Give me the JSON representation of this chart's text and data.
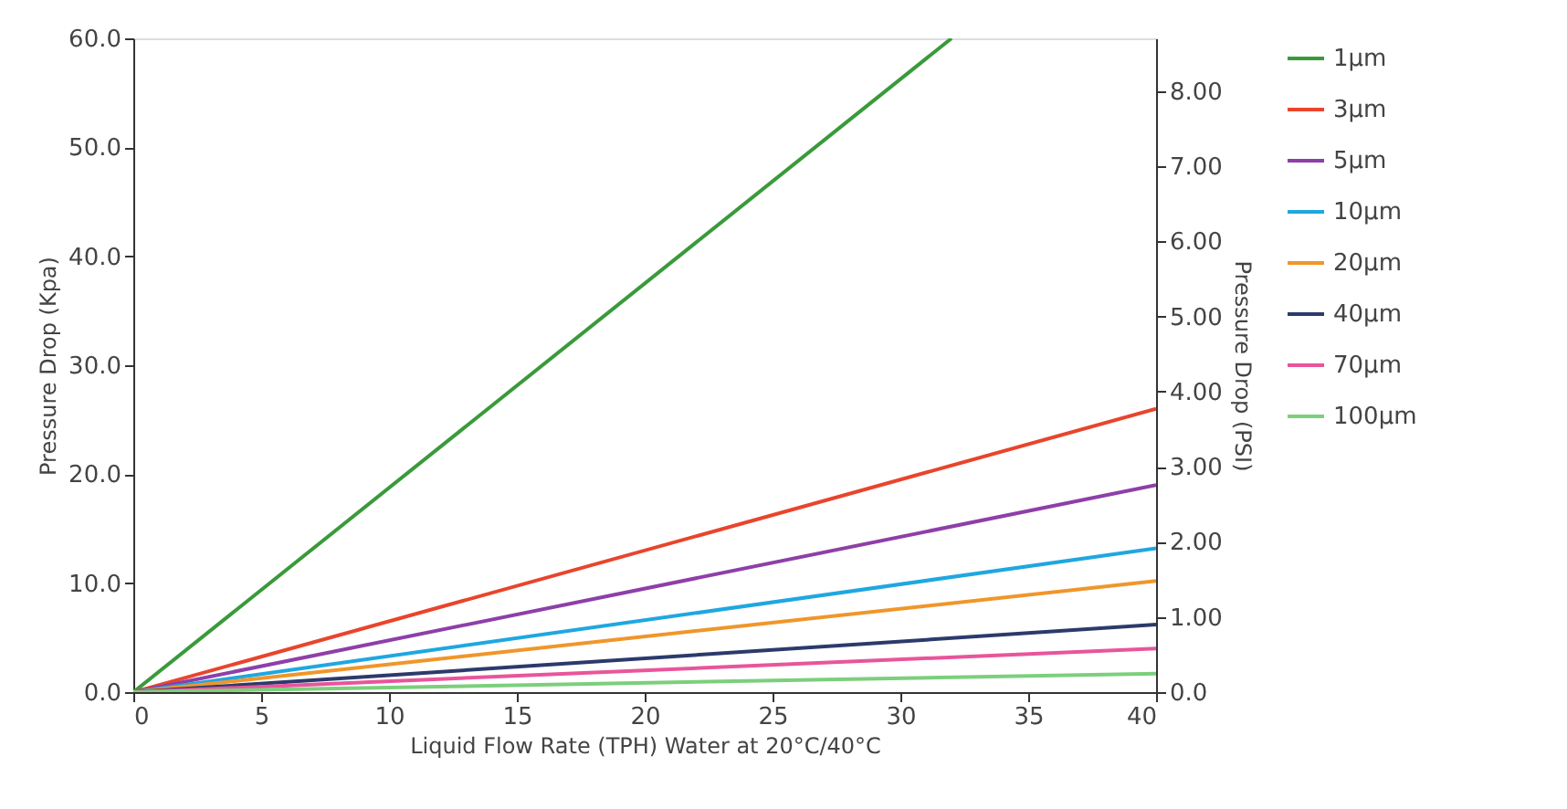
{
  "chart_data": {
    "type": "line",
    "xlabel": "Liquid Flow Rate (TPH) Water at 20°C/40°C",
    "ylabel": "Pressure Drop (Kpa)",
    "y2label": "Pressure Drop (PSI)",
    "xlim": [
      0,
      40
    ],
    "xticks": [
      0,
      5,
      10,
      15,
      20,
      25,
      30,
      35,
      40
    ],
    "ylim": [
      0,
      60
    ],
    "yticks": [
      {
        "value": 0,
        "label": "0.0"
      },
      {
        "value": 10,
        "label": "10.0"
      },
      {
        "value": 20,
        "label": "20.0"
      },
      {
        "value": 30,
        "label": "30.0"
      },
      {
        "value": 40,
        "label": "40.0"
      },
      {
        "value": 50,
        "label": "50.0"
      },
      {
        "value": 60,
        "label": "60.0"
      }
    ],
    "y2lim": [
      0,
      8.7
    ],
    "y2ticks": [
      {
        "value": 0,
        "label": "0.0"
      },
      {
        "value": 1,
        "label": "1.00"
      },
      {
        "value": 2,
        "label": "2.00"
      },
      {
        "value": 3,
        "label": "3.00"
      },
      {
        "value": 4,
        "label": "4.00"
      },
      {
        "value": 5,
        "label": "5.00"
      },
      {
        "value": 6,
        "label": "6.00"
      },
      {
        "value": 7,
        "label": "7.00"
      },
      {
        "value": 8,
        "label": "8.00"
      }
    ],
    "grid": false,
    "legend": "right",
    "marker": "none",
    "line_style": "solid",
    "series": [
      {
        "name": "1µm",
        "color": "#3a9a3a",
        "x": [
          0,
          32
        ],
        "values": [
          0,
          60
        ]
      },
      {
        "name": "3µm",
        "color": "#e8452c",
        "x": [
          0,
          40
        ],
        "values": [
          0,
          26
        ]
      },
      {
        "name": "5µm",
        "color": "#8e3fa8",
        "x": [
          0,
          40
        ],
        "values": [
          0,
          19
        ]
      },
      {
        "name": "10µm",
        "color": "#1fa7e0",
        "x": [
          0,
          40
        ],
        "values": [
          0,
          13.2
        ]
      },
      {
        "name": "20µm",
        "color": "#f0962a",
        "x": [
          0,
          40
        ],
        "values": [
          0,
          10.2
        ]
      },
      {
        "name": "40µm",
        "color": "#2c3a6b",
        "x": [
          0,
          40
        ],
        "values": [
          0,
          6.2
        ]
      },
      {
        "name": "70µm",
        "color": "#e8559a",
        "x": [
          0,
          40
        ],
        "values": [
          0,
          4
        ]
      },
      {
        "name": "100µm",
        "color": "#7ccf7c",
        "x": [
          0,
          40
        ],
        "values": [
          0,
          1.7
        ]
      }
    ]
  }
}
